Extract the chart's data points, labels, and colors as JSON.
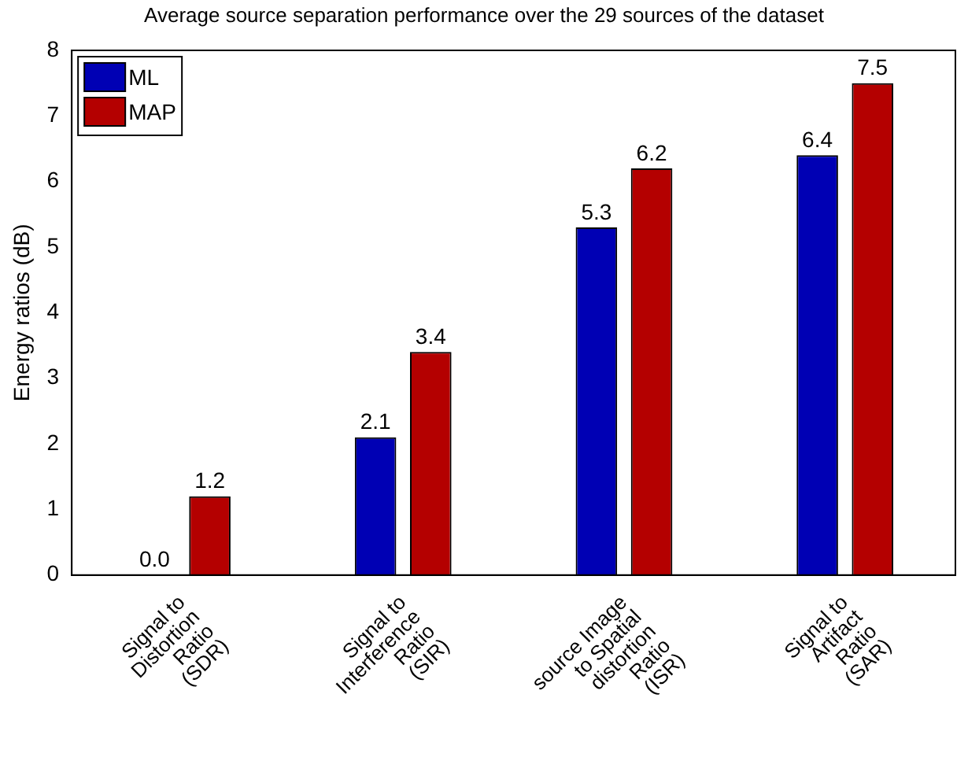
{
  "chart_data": {
    "type": "bar",
    "title": "Average source separation performance over the 29 sources of the dataset",
    "ylabel": "Energy ratios (dB)",
    "categories": [
      "Signal to\nDistortion\nRatio\n(SDR)",
      "Signal to\nInterference\nRatio\n(SIR)",
      "source Image\nto Spatial\ndistortion\nRatio\n(ISR)",
      "Signal to\nArtifact\nRatio\n(SAR)"
    ],
    "series": [
      {
        "name": "ML",
        "color": "#0000b4",
        "values": [
          0,
          2.1,
          5.3,
          6.4
        ],
        "value_labels": [
          "0.0",
          "2.1",
          "5.3",
          "6.4"
        ]
      },
      {
        "name": "MAP",
        "color": "#b40000",
        "values": [
          1.2,
          3.4,
          6.2,
          7.5
        ],
        "value_labels": [
          "1.2",
          "3.4",
          "6.2",
          "7.5"
        ]
      }
    ],
    "ylim": [
      0,
      8
    ],
    "yticks": [
      0,
      1,
      2,
      3,
      4,
      5,
      6,
      7,
      8
    ],
    "grid": false,
    "legend": "top left"
  }
}
